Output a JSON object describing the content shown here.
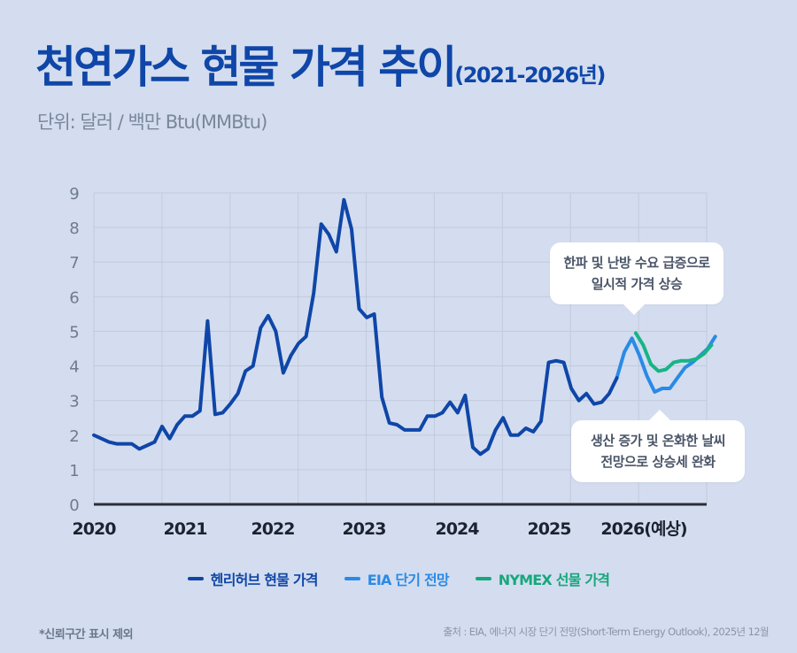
{
  "header": {
    "title": "천연가스 현물 가격 추이",
    "title_suffix": "(2021-2026년)",
    "unit": "단위: 달러 / 백만 Btu(MMBtu)"
  },
  "colors": {
    "henry_hub": "#0f46a8",
    "eia": "#2a8ae6",
    "nymex": "#17b486",
    "title": "#0f46a8",
    "background": "#d3ddef"
  },
  "callouts": {
    "top": [
      "한파 및 난방 수요 급증으로",
      "일시적 가격 상승"
    ],
    "bottom": [
      "생산 증가 및 온화한 날씨",
      "전망으로 상승세 완화"
    ]
  },
  "legend": [
    {
      "label": "헨리허브 현물 가격",
      "series": "henry_hub"
    },
    {
      "label": "EIA 단기 전망",
      "series": "eia"
    },
    {
      "label": "NYMEX 선물 가격",
      "series": "nymex"
    }
  ],
  "footer": {
    "note": "*신뢰구간 표시 제외",
    "source": "출처 : EIA, 에너지 시장 단기 전망(Short-Term Energy Outlook), 2025년 12월"
  },
  "chart_data": {
    "type": "line",
    "title": "천연가스 현물 가격 추이 (2021-2026년)",
    "xlabel": "",
    "ylabel": "달러 / 백만 Btu(MMBtu)",
    "ylim": [
      0,
      9
    ],
    "yticks": [
      0,
      1,
      2,
      3,
      4,
      5,
      6,
      7,
      8,
      9
    ],
    "x_unit": "months since Jan 2020",
    "xlim": [
      0,
      84
    ],
    "x_tick_labels": [
      "2020",
      "2021",
      "2022",
      "2023",
      "2024",
      "2025",
      "2026(예상)"
    ],
    "grid": true,
    "legend_position": "bottom",
    "series": [
      {
        "name": "헨리허브 현물 가격",
        "key": "henry_hub",
        "points": [
          [
            0,
            2.0
          ],
          [
            1,
            1.9
          ],
          [
            2,
            1.8
          ],
          [
            3,
            1.75
          ],
          [
            4,
            1.75
          ],
          [
            5,
            1.75
          ],
          [
            6,
            1.6
          ],
          [
            7,
            1.7
          ],
          [
            8,
            1.8
          ],
          [
            9,
            2.25
          ],
          [
            10,
            1.9
          ],
          [
            11,
            2.3
          ],
          [
            12,
            2.55
          ],
          [
            13,
            2.55
          ],
          [
            14,
            2.7
          ],
          [
            15,
            5.3
          ],
          [
            16,
            2.6
          ],
          [
            17,
            2.65
          ],
          [
            18,
            2.9
          ],
          [
            19,
            3.2
          ],
          [
            20,
            3.85
          ],
          [
            21,
            4.0
          ],
          [
            22,
            5.1
          ],
          [
            23,
            5.45
          ],
          [
            24,
            5.0
          ],
          [
            25,
            3.8
          ],
          [
            26,
            4.3
          ],
          [
            27,
            4.65
          ],
          [
            28,
            4.85
          ],
          [
            29,
            6.1
          ],
          [
            30,
            8.1
          ],
          [
            31,
            7.8
          ],
          [
            32,
            7.3
          ],
          [
            33,
            8.8
          ],
          [
            34,
            7.95
          ],
          [
            35,
            5.65
          ],
          [
            36,
            5.4
          ],
          [
            37,
            5.5
          ],
          [
            38,
            3.1
          ],
          [
            39,
            2.35
          ],
          [
            40,
            2.3
          ],
          [
            41,
            2.15
          ],
          [
            42,
            2.15
          ],
          [
            43,
            2.15
          ],
          [
            44,
            2.55
          ],
          [
            45,
            2.55
          ],
          [
            46,
            2.65
          ],
          [
            47,
            2.95
          ],
          [
            48,
            2.65
          ],
          [
            49,
            3.15
          ],
          [
            50,
            1.65
          ],
          [
            51,
            1.45
          ],
          [
            52,
            1.6
          ],
          [
            53,
            2.15
          ],
          [
            54,
            2.5
          ],
          [
            55,
            2.0
          ],
          [
            56,
            2.0
          ],
          [
            57,
            2.2
          ],
          [
            58,
            2.1
          ],
          [
            59,
            2.4
          ],
          [
            60,
            4.1
          ],
          [
            61,
            4.15
          ],
          [
            62,
            4.1
          ],
          [
            63,
            3.35
          ],
          [
            64,
            3.0
          ],
          [
            65,
            3.2
          ],
          [
            66,
            2.9
          ],
          [
            67,
            2.95
          ],
          [
            68,
            3.2
          ],
          [
            69,
            3.65
          ]
        ]
      },
      {
        "name": "EIA 단기 전망",
        "key": "eia",
        "points": [
          [
            69,
            3.65
          ],
          [
            70,
            4.4
          ],
          [
            71,
            4.8
          ],
          [
            72,
            4.3
          ],
          [
            73,
            3.7
          ],
          [
            74,
            3.25
          ],
          [
            75,
            3.35
          ],
          [
            76,
            3.35
          ],
          [
            77,
            3.65
          ],
          [
            78,
            3.95
          ],
          [
            79,
            4.1
          ],
          [
            80,
            4.3
          ],
          [
            81,
            4.5
          ],
          [
            82,
            4.85
          ]
        ]
      },
      {
        "name": "NYMEX 선물 가격",
        "key": "nymex",
        "points": [
          [
            71.5,
            4.95
          ],
          [
            72.5,
            4.6
          ],
          [
            73.5,
            4.05
          ],
          [
            74.5,
            3.85
          ],
          [
            75.5,
            3.9
          ],
          [
            76.5,
            4.1
          ],
          [
            77.5,
            4.15
          ],
          [
            78.5,
            4.15
          ],
          [
            79.5,
            4.2
          ],
          [
            80.5,
            4.35
          ],
          [
            81.5,
            4.6
          ]
        ]
      }
    ]
  }
}
